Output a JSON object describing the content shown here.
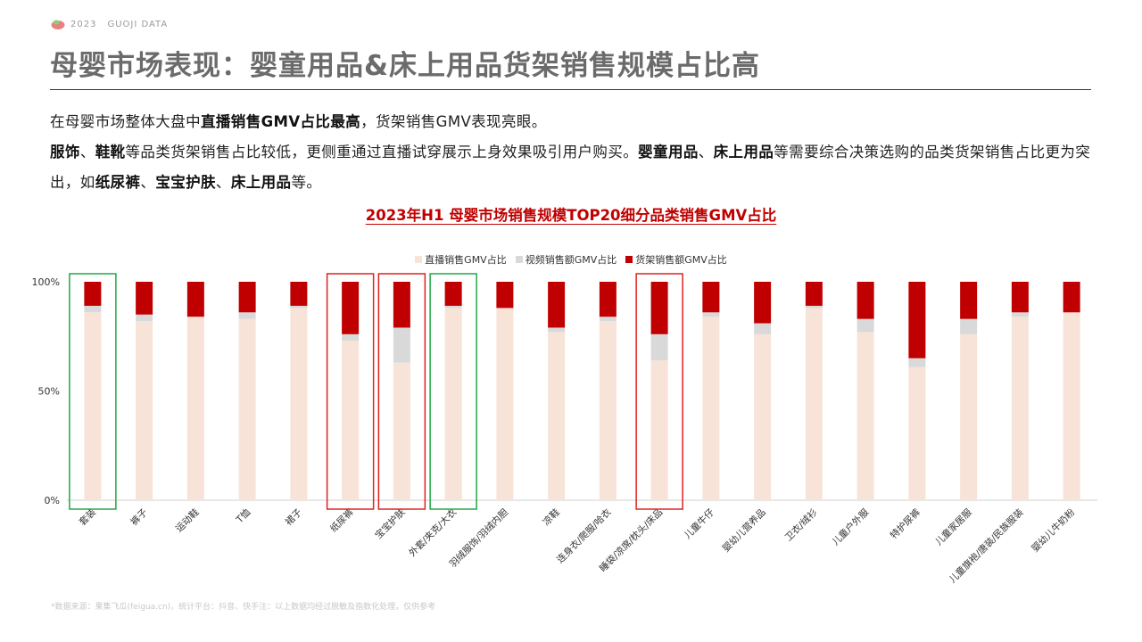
{
  "brand": {
    "year": "2023",
    "name": "GUOJI DATA"
  },
  "page_title": "母婴市场表现：婴童用品&床上用品货架销售规模占比高",
  "description": {
    "line1": [
      {
        "text": "在母婴市场整体大盘中",
        "bold": false
      },
      {
        "text": "直播销售GMV占比最高",
        "bold": true
      },
      {
        "text": "，货架销售GMV表现亮眼。",
        "bold": false
      }
    ],
    "line2": [
      {
        "text": "服饰",
        "bold": true
      },
      {
        "text": "、",
        "bold": false
      },
      {
        "text": "鞋靴",
        "bold": true
      },
      {
        "text": "等品类货架销售占比较低，更侧重通过直播试穿展示上身效果吸引用户购买。",
        "bold": false
      },
      {
        "text": "婴童用品",
        "bold": true
      },
      {
        "text": "、",
        "bold": false
      },
      {
        "text": "床上用品",
        "bold": true
      },
      {
        "text": "等需要综合决策选购的品类货架销售占比更为突出，如",
        "bold": false
      },
      {
        "text": "纸尿裤",
        "bold": true
      },
      {
        "text": "、",
        "bold": false
      },
      {
        "text": "宝宝护肤",
        "bold": true
      },
      {
        "text": "、",
        "bold": false
      },
      {
        "text": "床上用品",
        "bold": true
      },
      {
        "text": "等。",
        "bold": false
      }
    ]
  },
  "chart_heading": "2023年H1 母婴市场销售规模TOP20细分品类销售GMV占比",
  "legend": [
    {
      "label": "直播销售GMV占比",
      "color": "#f8e3d8"
    },
    {
      "label": "视频销售额GMV占比",
      "color": "#d9d9d9"
    },
    {
      "label": "货架销售额GMV占比",
      "color": "#c00000"
    }
  ],
  "chart_data": {
    "type": "bar",
    "stacked": true,
    "categories": [
      "套装",
      "裤子",
      "运动鞋",
      "T恤",
      "裙子",
      "纸尿裤",
      "宝宝护肤",
      "外套/夹克/大衣",
      "羽绒服饰/羽绒内胆",
      "凉鞋",
      "连身衣/爬服/哈衣",
      "睡袋/凉席/枕头/床品",
      "儿童牛仔",
      "婴幼儿营养品",
      "卫衣/绒衫",
      "儿童户外服",
      "特护尿裤",
      "儿童家居服",
      "儿童旗袍/唐装/民族服装",
      "婴幼儿牛奶粉"
    ],
    "series": [
      {
        "name": "直播销售GMV占比",
        "color": "#f8e3d8",
        "values": [
          86,
          82,
          84,
          83,
          88,
          73,
          63,
          88,
          88,
          77,
          82,
          64,
          84,
          76,
          88,
          77,
          61,
          76,
          84,
          86
        ]
      },
      {
        "name": "视频销售额GMV占比",
        "color": "#d9d9d9",
        "values": [
          3,
          3,
          0,
          3,
          1,
          3,
          16,
          1,
          0,
          2,
          2,
          12,
          2,
          5,
          1,
          6,
          4,
          7,
          2,
          0
        ]
      },
      {
        "name": "货架销售额GMV占比",
        "color": "#c00000",
        "values": [
          11,
          15,
          16,
          14,
          11,
          24,
          21,
          11,
          12,
          21,
          16,
          24,
          14,
          19,
          11,
          17,
          35,
          17,
          14,
          14
        ]
      }
    ],
    "y_ticks": [
      "0%",
      "50%",
      "100%"
    ],
    "ylim": [
      0,
      100
    ],
    "grid": false,
    "legend_position": "top",
    "highlight_boxes": [
      {
        "categories": [
          0
        ],
        "color": "#22a844"
      },
      {
        "categories": [
          5
        ],
        "color": "#e02020"
      },
      {
        "categories": [
          6
        ],
        "color": "#e02020"
      },
      {
        "categories": [
          7
        ],
        "color": "#22a844"
      },
      {
        "categories": [
          11
        ],
        "color": "#e02020"
      }
    ]
  },
  "footnote": "*数据来源：果集飞瓜(feigua.cn)，统计平台：抖音、快手注：以上数据均经过脱敏及指数化处理，仅供参考"
}
